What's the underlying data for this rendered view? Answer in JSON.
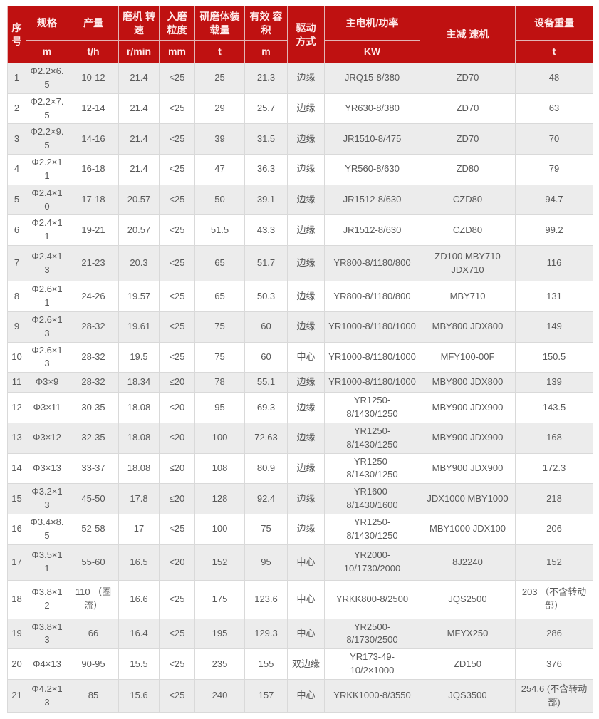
{
  "table": {
    "header": {
      "cols": [
        {
          "label": "序号",
          "unit": null
        },
        {
          "label": "规格",
          "unit": "m"
        },
        {
          "label": "产量",
          "unit": "t/h"
        },
        {
          "label": "磨机 转速",
          "unit": "r/min"
        },
        {
          "label": "入磨 粒度",
          "unit": "mm"
        },
        {
          "label": "研磨体装载量",
          "unit": "t"
        },
        {
          "label": "有效 容积",
          "unit": "m"
        },
        {
          "label": "驱动 方式",
          "unit": null
        },
        {
          "label": "主电机/功率",
          "unit": "KW"
        },
        {
          "label": "主减 速机",
          "unit": null
        },
        {
          "label": "设备重量",
          "unit": "t"
        }
      ]
    },
    "rows": [
      [
        "1",
        "Φ2.2×6.5",
        "10-12",
        "21.4",
        "<25",
        "25",
        "21.3",
        "边缘",
        "JRQ15-8/380",
        "ZD70",
        "48"
      ],
      [
        "2",
        "Φ2.2×7.5",
        "12-14",
        "21.4",
        "<25",
        "29",
        "25.7",
        "边缘",
        "YR630-8/380",
        "ZD70",
        "63"
      ],
      [
        "3",
        "Φ2.2×9.5",
        "14-16",
        "21.4",
        "<25",
        "39",
        "31.5",
        "边缘",
        "JR1510-8/475",
        "ZD70",
        "70"
      ],
      [
        "4",
        "Φ2.2×11",
        "16-18",
        "21.4",
        "<25",
        "47",
        "36.3",
        "边缘",
        "YR560-8/630",
        "ZD80",
        "79"
      ],
      [
        "5",
        "Φ2.4×10",
        "17-18",
        "20.57",
        "<25",
        "50",
        "39.1",
        "边缘",
        "JR1512-8/630",
        "CZD80",
        "94.7"
      ],
      [
        "6",
        "Φ2.4×11",
        "19-21",
        "20.57",
        "<25",
        "51.5",
        "43.3",
        "边缘",
        "JR1512-8/630",
        "CZD80",
        "99.2"
      ],
      [
        "7",
        "Φ2.4×13",
        "21-23",
        "20.3",
        "<25",
        "65",
        "51.7",
        "边缘",
        "YR800-8/1180/800",
        "ZD100 MBY710 JDX710",
        "116"
      ],
      [
        "8",
        "Φ2.6×11",
        "24-26",
        "19.57",
        "<25",
        "65",
        "50.3",
        "边缘",
        "YR800-8/1180/800",
        "MBY710",
        "131"
      ],
      [
        "9",
        "Φ2.6×13",
        "28-32",
        "19.61",
        "<25",
        "75",
        "60",
        "边缘",
        "YR1000-8/1180/1000",
        "MBY800 JDX800",
        "149"
      ],
      [
        "10",
        "Φ2.6×13",
        "28-32",
        "19.5",
        "<25",
        "75",
        "60",
        "中心",
        "YR1000-8/1180/1000",
        "MFY100-00F",
        "150.5"
      ],
      [
        "11",
        "Φ3×9",
        "28-32",
        "18.34",
        "≤20",
        "78",
        "55.1",
        "边缘",
        "YR1000-8/1180/1000",
        "MBY800 JDX800",
        "139"
      ],
      [
        "12",
        "Φ3×11",
        "30-35",
        "18.08",
        "≤20",
        "95",
        "69.3",
        "边缘",
        "YR1250-8/1430/1250",
        "MBY900 JDX900",
        "143.5"
      ],
      [
        "13",
        "Φ3×12",
        "32-35",
        "18.08",
        "≤20",
        "100",
        "72.63",
        "边缘",
        "YR1250-8/1430/1250",
        "MBY900 JDX900",
        "168"
      ],
      [
        "14",
        "Φ3×13",
        "33-37",
        "18.08",
        "≤20",
        "108",
        "80.9",
        "边缘",
        "YR1250-8/1430/1250",
        "MBY900 JDX900",
        "172.3"
      ],
      [
        "15",
        "Φ3.2×13",
        "45-50",
        "17.8",
        "≤20",
        "128",
        "92.4",
        "边缘",
        "YR1600-8/1430/1600",
        "JDX1000 MBY1000",
        "218"
      ],
      [
        "16",
        "Φ3.4×8.5",
        "52-58",
        "17",
        "<25",
        "100",
        "75",
        "边缘",
        "YR1250-8/1430/1250",
        "MBY1000 JDX100",
        "206"
      ],
      [
        "17",
        "Φ3.5×11",
        "55-60",
        "16.5",
        "<20",
        "152",
        "95",
        "中心",
        "YR2000-10/1730/2000",
        "8J2240",
        "152"
      ],
      [
        "18",
        "Φ3.8×12",
        "110 （圈流）",
        "16.6",
        "<25",
        "175",
        "123.6",
        "中心",
        "YRKK800-8/2500",
        "JQS2500",
        "203 （不含转动部）"
      ],
      [
        "19",
        "Φ3.8×13",
        "66",
        "16.4",
        "<25",
        "195",
        "129.3",
        "中心",
        "YR2500-8/1730/2500",
        "MFYX250",
        "286"
      ],
      [
        "20",
        "Φ4×13",
        "90-95",
        "15.5",
        "<25",
        "235",
        "155",
        "双边缘",
        "YR173-49-10/2×1000",
        "ZD150",
        "376"
      ],
      [
        "21",
        "Φ4.2×13",
        "85",
        "15.6",
        "<25",
        "240",
        "157",
        "中心",
        "YRKK1000-8/3550",
        "JQS3500",
        "254.6 (不含转动部)"
      ]
    ]
  },
  "colors": {
    "header_bg": "#bf1111",
    "header_text": "#ffe9e9",
    "header_border": "#e3b6b6",
    "row_alt_bg": "#ececec",
    "body_text": "#595959",
    "cell_border": "#d9d9d9"
  }
}
